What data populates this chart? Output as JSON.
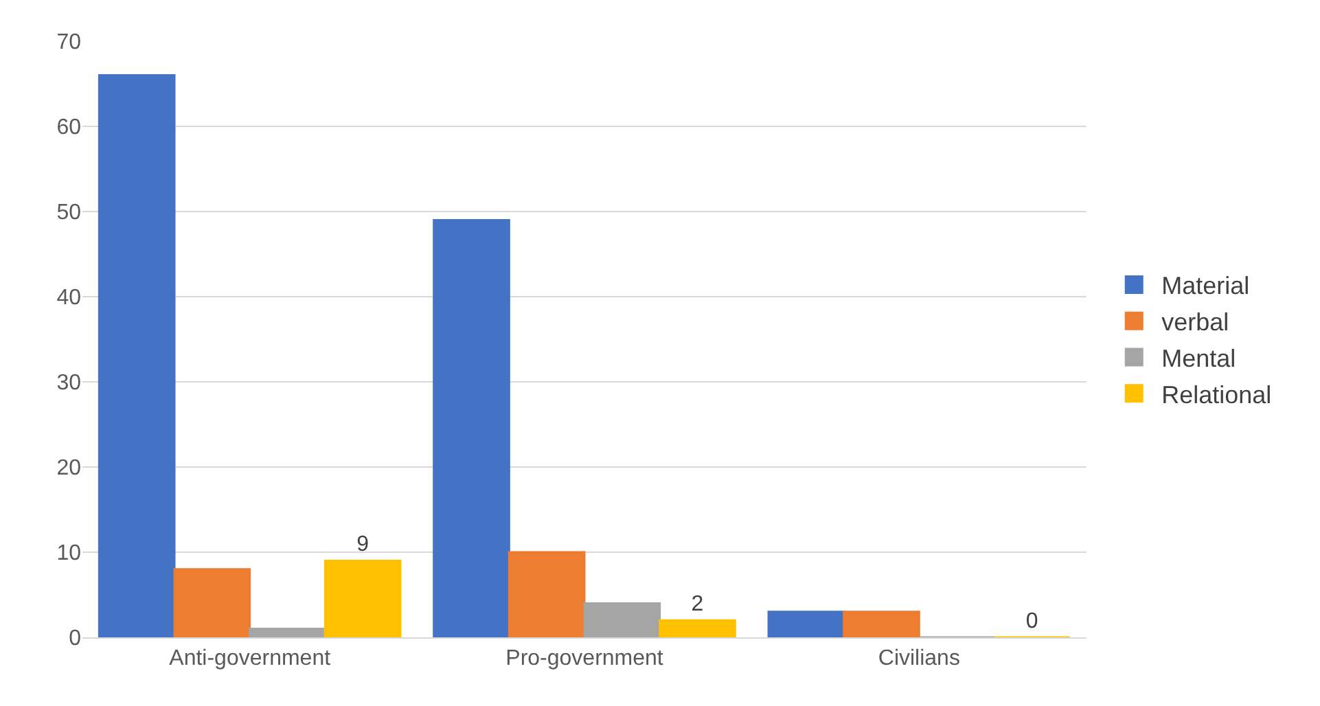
{
  "chart_data": {
    "type": "bar",
    "categories": [
      "Anti-government",
      "Pro-government",
      "Civilians"
    ],
    "series": [
      {
        "name": "Material",
        "color": "#4472c4",
        "values": [
          66,
          49,
          3
        ]
      },
      {
        "name": "verbal",
        "color": "#ed7d31",
        "values": [
          8,
          10,
          3
        ]
      },
      {
        "name": "Mental",
        "color": "#a5a5a5",
        "values": [
          1,
          4,
          0
        ]
      },
      {
        "name": "Relational",
        "color": "#ffc000",
        "values": [
          9,
          2,
          0
        ],
        "value_labels": [
          "9",
          "2",
          "0"
        ]
      }
    ],
    "ylim": [
      0,
      70
    ],
    "yticks": [
      0,
      10,
      20,
      30,
      40,
      50,
      60,
      70
    ],
    "grid": "y",
    "legend": "right"
  }
}
